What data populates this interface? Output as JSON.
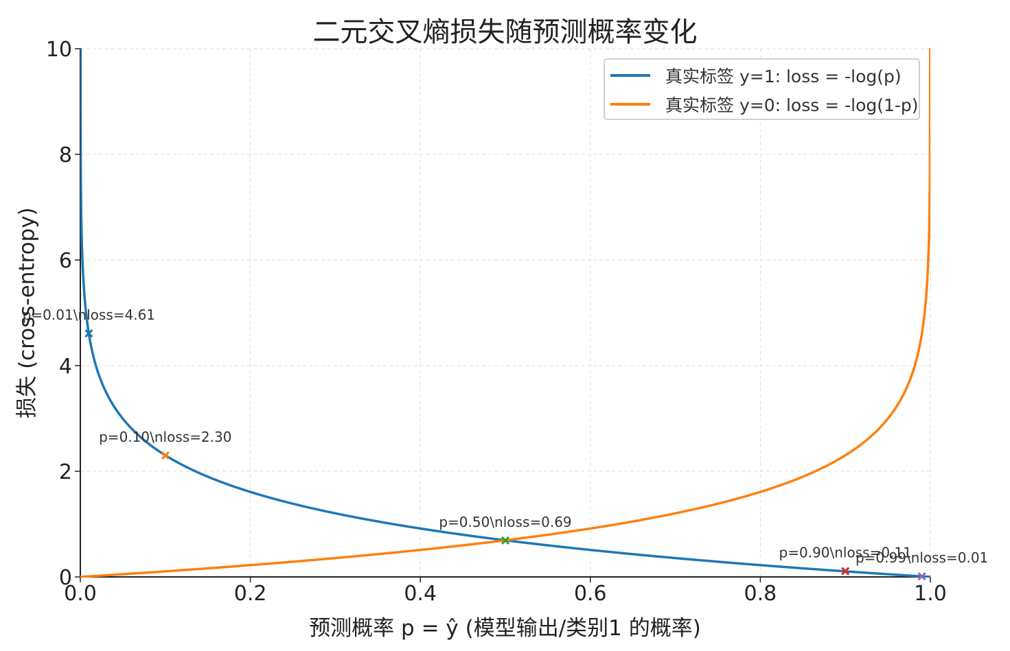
{
  "chart_data": {
    "type": "line",
    "title": "二元交叉熵损失随预测概率变化",
    "xlabel": "预测概率 p = ŷ (模型输出/类别1 的概率)",
    "ylabel": "损失 (cross-entropy)",
    "xlim": [
      0.0,
      1.0
    ],
    "ylim": [
      0,
      10
    ],
    "x_ticks": [
      "0.0",
      "0.2",
      "0.4",
      "0.6",
      "0.8",
      "1.0"
    ],
    "y_ticks": [
      "0",
      "2",
      "4",
      "6",
      "8",
      "10"
    ],
    "grid": true,
    "legend_position": "top-right",
    "series": [
      {
        "name": "真实标签 y=1: loss = -log(p)",
        "formula": "-log(p)",
        "color": "#1f77b4"
      },
      {
        "name": "真实标签 y=0: loss = -log(1-p)",
        "formula": "-log(1-p)",
        "color": "#ff7f0e"
      }
    ],
    "markers": [
      {
        "x": 0.01,
        "y": 4.61,
        "color": "#1f77b4",
        "label": "p=0.01\\nloss=4.61"
      },
      {
        "x": 0.1,
        "y": 2.3,
        "color": "#ff7f0e",
        "label": "p=0.10\\nloss=2.30"
      },
      {
        "x": 0.5,
        "y": 0.69,
        "color": "#2ca02c",
        "label": "p=0.50\\nloss=0.69"
      },
      {
        "x": 0.9,
        "y": 0.11,
        "color": "#d62728",
        "label": "p=0.90\\nloss=0.11"
      },
      {
        "x": 0.99,
        "y": 0.01,
        "color": "#9467bd",
        "label": "p=0.99\\nloss=0.01"
      }
    ]
  }
}
